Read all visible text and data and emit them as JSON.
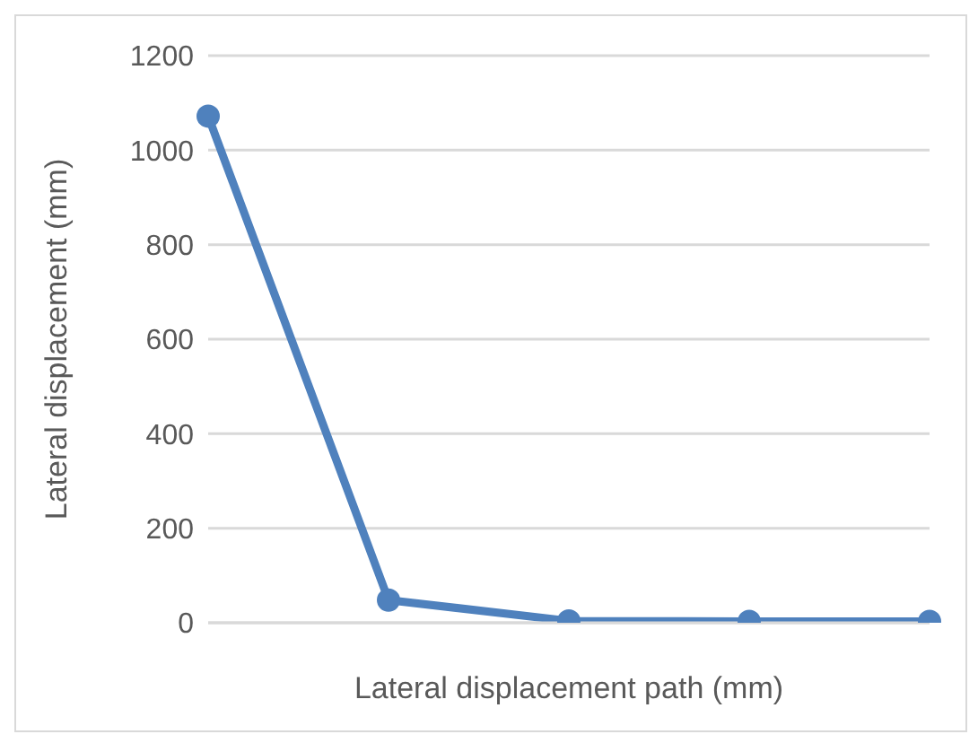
{
  "chart_data": {
    "type": "line",
    "xlabel": "Lateral displacement path (mm)",
    "ylabel": "Lateral displacement (mm)",
    "categories": [
      null,
      null,
      null,
      null,
      null
    ],
    "series": [
      {
        "color": "#4f81bd",
        "values": [
          1072,
          48,
          4,
          3,
          3
        ]
      }
    ],
    "ylim": [
      0,
      1200
    ],
    "yticks": [
      0,
      200,
      400,
      600,
      800,
      1000,
      1200
    ],
    "grid": "y",
    "marker": "circle",
    "line_style": "solid",
    "legend": false
  }
}
